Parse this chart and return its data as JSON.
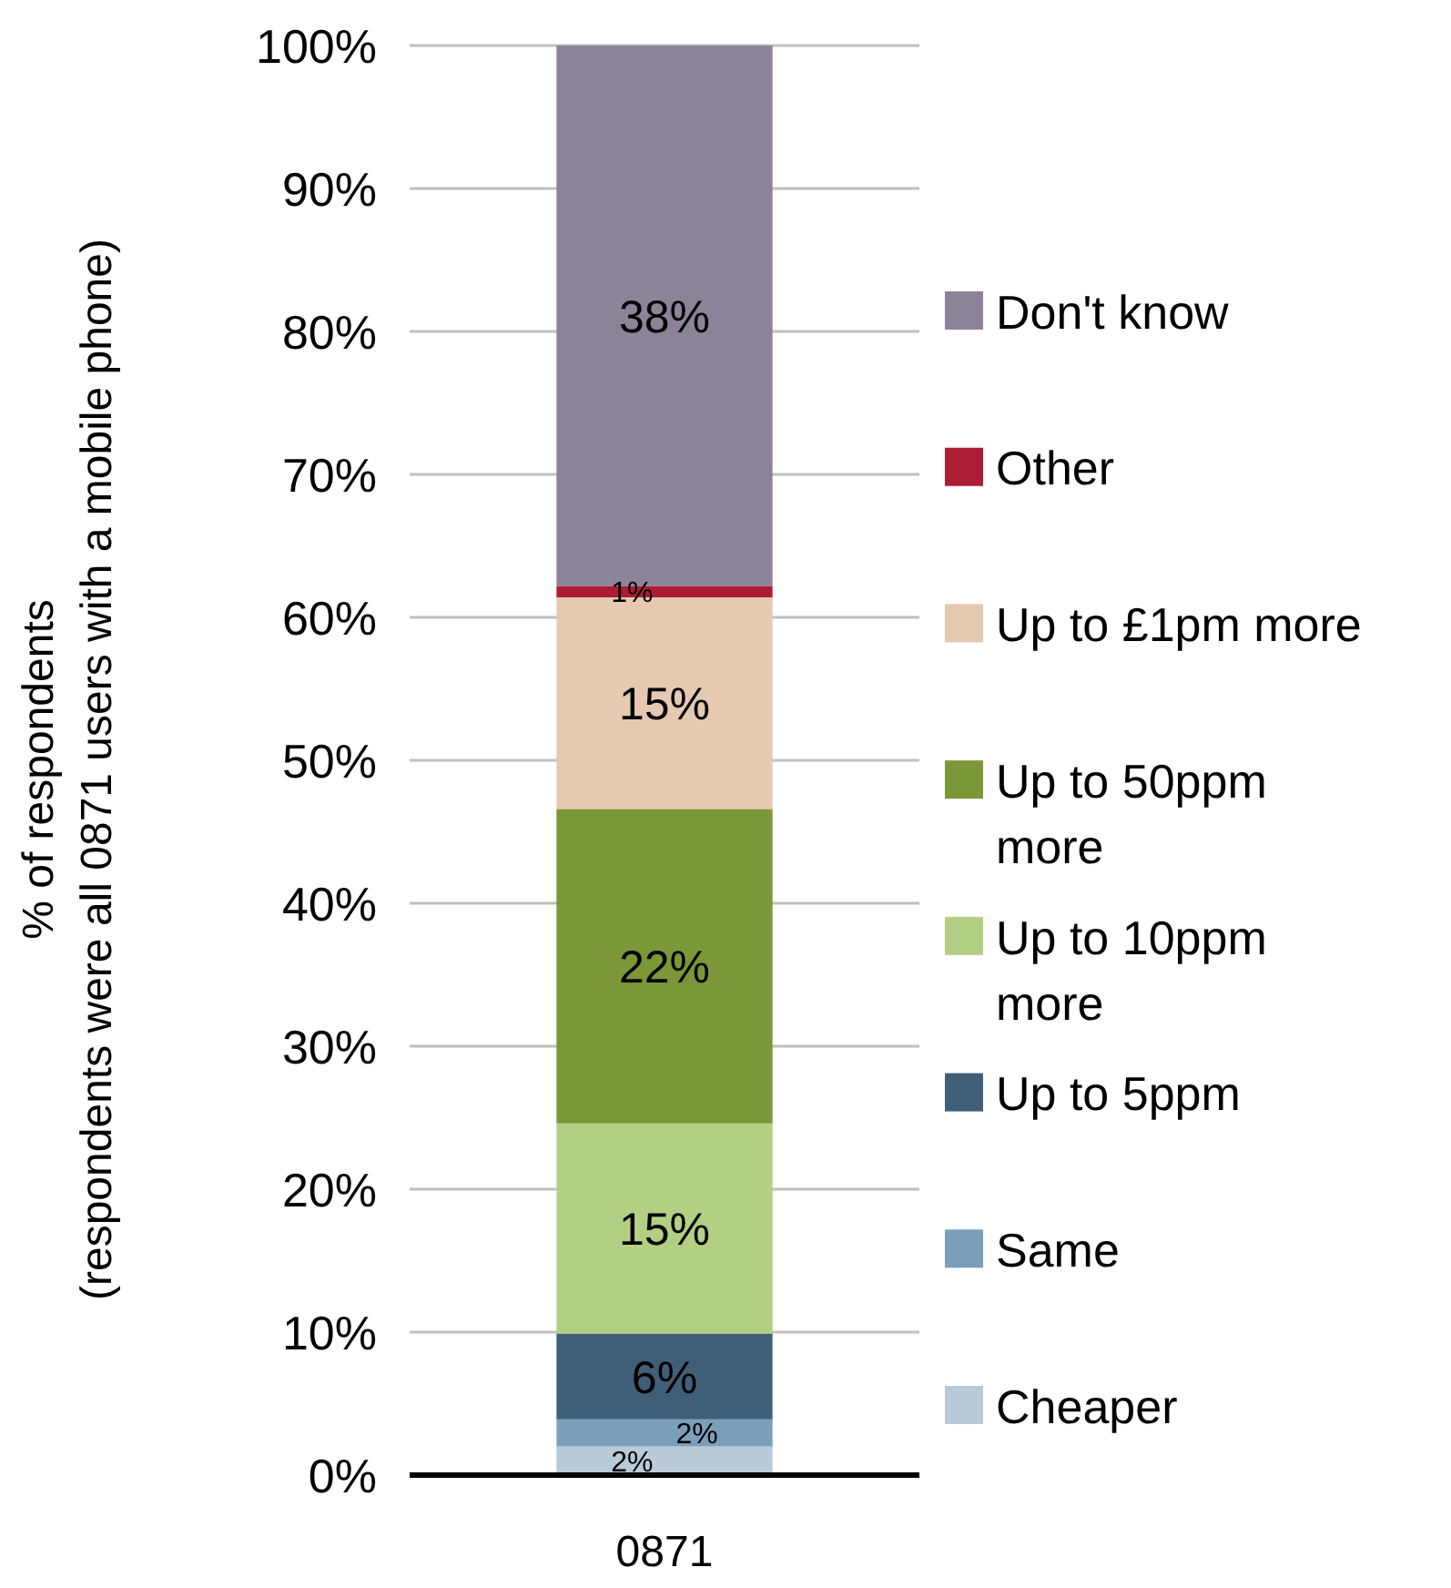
{
  "chart_data": {
    "type": "bar",
    "stacked": true,
    "ylabel": "% of respondents\n(respondents were all 0871 users with a mobile phone)",
    "categories": [
      "0871"
    ],
    "series": [
      {
        "name": "Cheaper",
        "color": "#b9cad8",
        "values": [
          2.0
        ],
        "value_labels": [
          "2%"
        ]
      },
      {
        "name": "Same",
        "color": "#7b9fbb",
        "values": [
          1.9
        ],
        "value_labels": [
          "2%"
        ]
      },
      {
        "name": "Up to 5ppm",
        "color": "#3f5f78",
        "values": [
          6.0
        ],
        "value_labels": [
          "6%"
        ]
      },
      {
        "name": "Up to 10ppm more",
        "color": "#b3cf84",
        "values": [
          14.7
        ],
        "value_labels": [
          "15%"
        ]
      },
      {
        "name": "Up to 50ppm more",
        "color": "#7c9738",
        "values": [
          22.0
        ],
        "value_labels": [
          "22%"
        ]
      },
      {
        "name": "Up to £1pm more",
        "color": "#e5cab1",
        "values": [
          14.8
        ],
        "value_labels": [
          "15%"
        ]
      },
      {
        "name": "Other",
        "color": "#ac1c34",
        "values": [
          0.8
        ],
        "value_labels": [
          "1%"
        ]
      },
      {
        "name": "Don't know",
        "color": "#8c8399",
        "values": [
          37.8
        ],
        "value_labels": [
          "38%"
        ]
      }
    ],
    "ylim": [
      0,
      100
    ],
    "yticks": [
      {
        "value": 0,
        "label": "0%"
      },
      {
        "value": 10,
        "label": "10%"
      },
      {
        "value": 20,
        "label": "20%"
      },
      {
        "value": 30,
        "label": "30%"
      },
      {
        "value": 40,
        "label": "40%"
      },
      {
        "value": 50,
        "label": "50%"
      },
      {
        "value": 60,
        "label": "60%"
      },
      {
        "value": 70,
        "label": "70%"
      },
      {
        "value": 80,
        "label": "80%"
      },
      {
        "value": 90,
        "label": "90%"
      },
      {
        "value": 100,
        "label": "100%"
      }
    ],
    "grid": "y",
    "legend": "right"
  }
}
